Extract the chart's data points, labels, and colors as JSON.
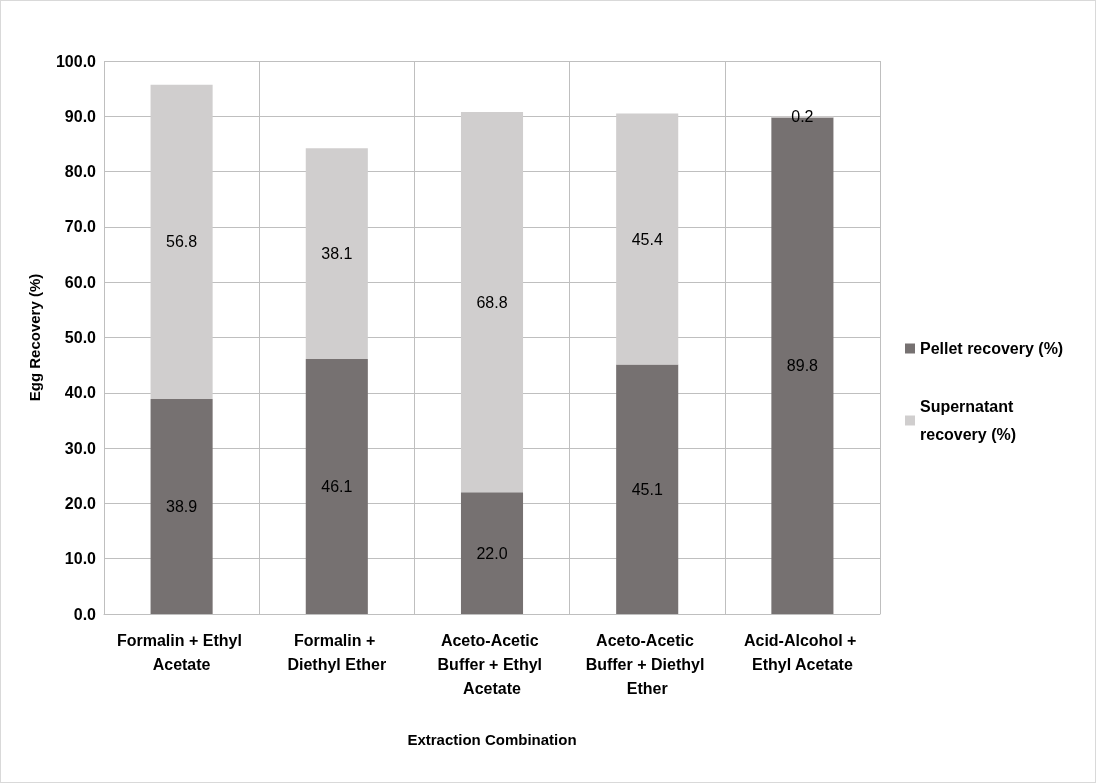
{
  "chart_data": {
    "type": "bar",
    "stacked": true,
    "xlabel": "Extraction Combination",
    "ylabel": "Egg Recovery (%)",
    "categories": [
      "Formalin + Ethyl Acetate",
      "Formalin + Diethyl Ether",
      "Aceto-Acetic Buffer + Ethyl Acetate",
      "Aceto-Acetic Buffer + Diethyl Ether",
      "Acid-Alcohol + Ethyl Acetate"
    ],
    "series": [
      {
        "name": "Pellet recovery (%)",
        "color": "#767171",
        "values": [
          38.9,
          46.1,
          22.0,
          45.1,
          89.8
        ],
        "value_labels": [
          "38.9",
          "46.1",
          "22.0",
          "45.1",
          "89.8"
        ]
      },
      {
        "name": "Supernatant recovery (%)",
        "color": "#d0cece",
        "values": [
          56.8,
          38.1,
          68.8,
          45.4,
          0.2
        ],
        "value_labels": [
          "56.8",
          "38.1",
          "68.8",
          "45.4",
          "0.2"
        ]
      }
    ],
    "ylim": [
      0,
      100
    ],
    "yticks": [
      {
        "value": 0,
        "label": "0.0"
      },
      {
        "value": 10,
        "label": "10.0"
      },
      {
        "value": 20,
        "label": "20.0"
      },
      {
        "value": 30,
        "label": "30.0"
      },
      {
        "value": 40,
        "label": "40.0"
      },
      {
        "value": 50,
        "label": "50.0"
      },
      {
        "value": 60,
        "label": "60.0"
      },
      {
        "value": 70,
        "label": "70.0"
      },
      {
        "value": 80,
        "label": "80.0"
      },
      {
        "value": 90,
        "label": "90.0"
      },
      {
        "value": 100,
        "label": "100.0"
      }
    ],
    "grid": true,
    "legend": "right"
  }
}
